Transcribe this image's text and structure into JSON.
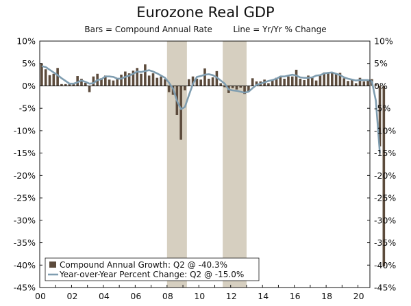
{
  "chart_data": {
    "type": "bar+line",
    "title": "Eurozone Real GDP",
    "subtitle": {
      "left": "Bars = Compound Annual Rate",
      "right": "Line = Yr/Yr % Change"
    },
    "ylim": [
      -45,
      10
    ],
    "y_ticks": [
      "10%",
      "5%",
      "0%",
      "-5%",
      "-10%",
      "-15%",
      "-20%",
      "-25%",
      "-30%",
      "-35%",
      "-40%",
      "-45%"
    ],
    "y_tick_values": [
      10,
      5,
      0,
      -5,
      -10,
      -15,
      -20,
      -25,
      -30,
      -35,
      -40,
      -45
    ],
    "x_tick_labels": [
      "00",
      "02",
      "04",
      "06",
      "08",
      "10",
      "12",
      "14",
      "16",
      "18",
      "20"
    ],
    "x_tick_years": [
      2000,
      2002,
      2004,
      2006,
      2008,
      2010,
      2012,
      2014,
      2016,
      2018,
      2020
    ],
    "x_start_year": 2000,
    "x_end_year": 2020.75,
    "recessions": [
      [
        2008.0,
        2009.25
      ],
      [
        2011.5,
        2013.0
      ]
    ],
    "series": [
      {
        "name": "Compound Annual Growth: Q2 @ -40.3%",
        "kind": "bar",
        "color": "#5c4b3c",
        "quarters_from": "2000Q1",
        "values": [
          5.0,
          3.7,
          2.4,
          2.7,
          4.0,
          0.4,
          0.4,
          0.5,
          0.6,
          2.2,
          1.6,
          0.7,
          -1.4,
          2.1,
          2.7,
          1.7,
          2.3,
          1.4,
          1.2,
          1.6,
          2.5,
          3.2,
          2.8,
          3.4,
          4.0,
          2.7,
          4.8,
          2.3,
          2.8,
          1.8,
          2.1,
          1.5,
          -1.4,
          -2.0,
          -6.5,
          -12.0,
          -1.0,
          1.5,
          2.1,
          1.6,
          1.4,
          3.9,
          1.6,
          1.9,
          3.3,
          0.6,
          -0.3,
          -1.6,
          -0.5,
          -0.8,
          -0.4,
          -1.8,
          -1.2,
          1.7,
          1.0,
          1.0,
          1.4,
          0.6,
          1.3,
          1.8,
          2.2,
          1.6,
          2.1,
          2.1,
          3.6,
          1.6,
          1.3,
          2.3,
          2.0,
          1.2,
          2.3,
          3.0,
          2.8,
          2.9,
          2.7,
          2.9,
          1.7,
          1.1,
          1.4,
          0.6,
          1.8,
          1.0,
          1.4,
          1.5,
          0.4,
          -13.5,
          -40.3
        ],
        "line_values": [
          4.4,
          4.2,
          3.6,
          3.0,
          2.4,
          1.7,
          1.1,
          0.5,
          0.5,
          0.8,
          1.2,
          0.9,
          0.5,
          0.6,
          1.3,
          1.5,
          2.1,
          2.1,
          2.0,
          1.6,
          1.6,
          2.0,
          2.3,
          2.7,
          3.2,
          3.1,
          3.3,
          3.5,
          3.2,
          2.8,
          2.3,
          1.8,
          0.7,
          -0.6,
          -3.3,
          -5.2,
          -4.7,
          -2.1,
          0.4,
          2.0,
          2.2,
          2.5,
          2.6,
          2.4,
          1.9,
          1.2,
          0.5,
          -0.8,
          -1.0,
          -1.1,
          -1.3,
          -1.5,
          -1.3,
          -0.5,
          0.2,
          0.5,
          0.8,
          1.1,
          1.3,
          1.6,
          2.1,
          2.1,
          2.3,
          2.5,
          2.3,
          1.9,
          1.8,
          1.8,
          1.9,
          2.3,
          2.4,
          2.8,
          2.9,
          3.0,
          2.7,
          2.4,
          1.9,
          1.6,
          1.4,
          1.2,
          1.3,
          1.3,
          1.3,
          1.0,
          -3.3,
          -15.0
        ]
      }
    ],
    "legend": [
      {
        "label": "Compound Annual Growth: Q2 @ -40.3%",
        "kind": "bar",
        "color": "#5c4b3c"
      },
      {
        "label": "Year-over-Year Percent Change: Q2 @ -15.0%",
        "kind": "line",
        "color": "#7f9db0"
      }
    ],
    "recession_color": "#d6cfc0",
    "line_color": "#7f9db0",
    "bar_color": "#5c4b3c"
  }
}
